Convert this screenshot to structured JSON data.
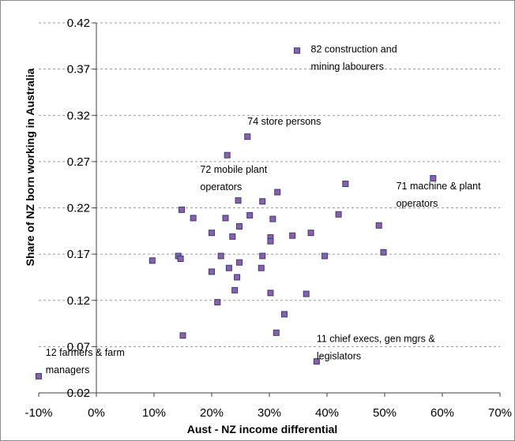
{
  "chart_data": {
    "type": "scatter",
    "title": "",
    "xlabel": "Aust - NZ  income differential",
    "ylabel": "Share of NZ born working in Australia",
    "xlim": [
      -0.1,
      0.7
    ],
    "ylim": [
      0.02,
      0.42
    ],
    "x_ticks": [
      -0.1,
      0,
      0.1,
      0.2,
      0.3,
      0.4,
      0.5,
      0.6,
      0.7
    ],
    "x_tick_labels": [
      "-10%",
      "0%",
      "10%",
      "20%",
      "30%",
      "40%",
      "50%",
      "60%",
      "70%"
    ],
    "y_ticks": [
      0.02,
      0.07,
      0.12,
      0.17,
      0.22,
      0.27,
      0.32,
      0.37,
      0.42
    ],
    "y_tick_labels": [
      "0.02",
      "0.07",
      "0.12",
      "0.17",
      "0.22",
      "0.27",
      "0.32",
      "0.37",
      "0.42"
    ],
    "grid": "horizontal dashed",
    "legend": "none",
    "marker_color": "#8e5fa8",
    "marker_edge_color": "#2f3f7a",
    "points": [
      {
        "x": -0.1,
        "y": 0.038
      },
      {
        "x": 0.097,
        "y": 0.163
      },
      {
        "x": 0.142,
        "y": 0.168
      },
      {
        "x": 0.146,
        "y": 0.165
      },
      {
        "x": 0.148,
        "y": 0.218
      },
      {
        "x": 0.15,
        "y": 0.082
      },
      {
        "x": 0.168,
        "y": 0.209
      },
      {
        "x": 0.2,
        "y": 0.151
      },
      {
        "x": 0.2,
        "y": 0.193
      },
      {
        "x": 0.21,
        "y": 0.118
      },
      {
        "x": 0.216,
        "y": 0.168
      },
      {
        "x": 0.224,
        "y": 0.209
      },
      {
        "x": 0.227,
        "y": 0.277
      },
      {
        "x": 0.23,
        "y": 0.155
      },
      {
        "x": 0.236,
        "y": 0.189
      },
      {
        "x": 0.24,
        "y": 0.131
      },
      {
        "x": 0.244,
        "y": 0.145
      },
      {
        "x": 0.246,
        "y": 0.228
      },
      {
        "x": 0.248,
        "y": 0.2
      },
      {
        "x": 0.248,
        "y": 0.161
      },
      {
        "x": 0.262,
        "y": 0.297
      },
      {
        "x": 0.266,
        "y": 0.212
      },
      {
        "x": 0.286,
        "y": 0.155
      },
      {
        "x": 0.288,
        "y": 0.227
      },
      {
        "x": 0.288,
        "y": 0.168
      },
      {
        "x": 0.302,
        "y": 0.188
      },
      {
        "x": 0.302,
        "y": 0.184
      },
      {
        "x": 0.302,
        "y": 0.128
      },
      {
        "x": 0.306,
        "y": 0.208
      },
      {
        "x": 0.312,
        "y": 0.085
      },
      {
        "x": 0.314,
        "y": 0.237
      },
      {
        "x": 0.326,
        "y": 0.105
      },
      {
        "x": 0.34,
        "y": 0.19
      },
      {
        "x": 0.348,
        "y": 0.39
      },
      {
        "x": 0.364,
        "y": 0.127
      },
      {
        "x": 0.372,
        "y": 0.193
      },
      {
        "x": 0.382,
        "y": 0.054
      },
      {
        "x": 0.396,
        "y": 0.168
      },
      {
        "x": 0.42,
        "y": 0.213
      },
      {
        "x": 0.432,
        "y": 0.246
      },
      {
        "x": 0.49,
        "y": 0.201
      },
      {
        "x": 0.498,
        "y": 0.172
      },
      {
        "x": 0.584,
        "y": 0.252
      }
    ],
    "annotations": [
      {
        "lines": [
          "82 construction and",
          "mining labourers"
        ],
        "x": 0.372,
        "y": 0.388
      },
      {
        "lines": [
          "74 store persons"
        ],
        "x": 0.262,
        "y": 0.31
      },
      {
        "lines": [
          "72 mobile plant",
          "operators"
        ],
        "x": 0.18,
        "y": 0.258
      },
      {
        "lines": [
          "71 machine & plant",
          "operators"
        ],
        "x": 0.52,
        "y": 0.24
      },
      {
        "lines": [
          "11 chief execs, gen mgrs &",
          "legislators"
        ],
        "x": 0.382,
        "y": 0.075
      },
      {
        "lines": [
          "12 farmers & farm",
          "managers"
        ],
        "x": -0.088,
        "y": 0.06
      }
    ]
  }
}
